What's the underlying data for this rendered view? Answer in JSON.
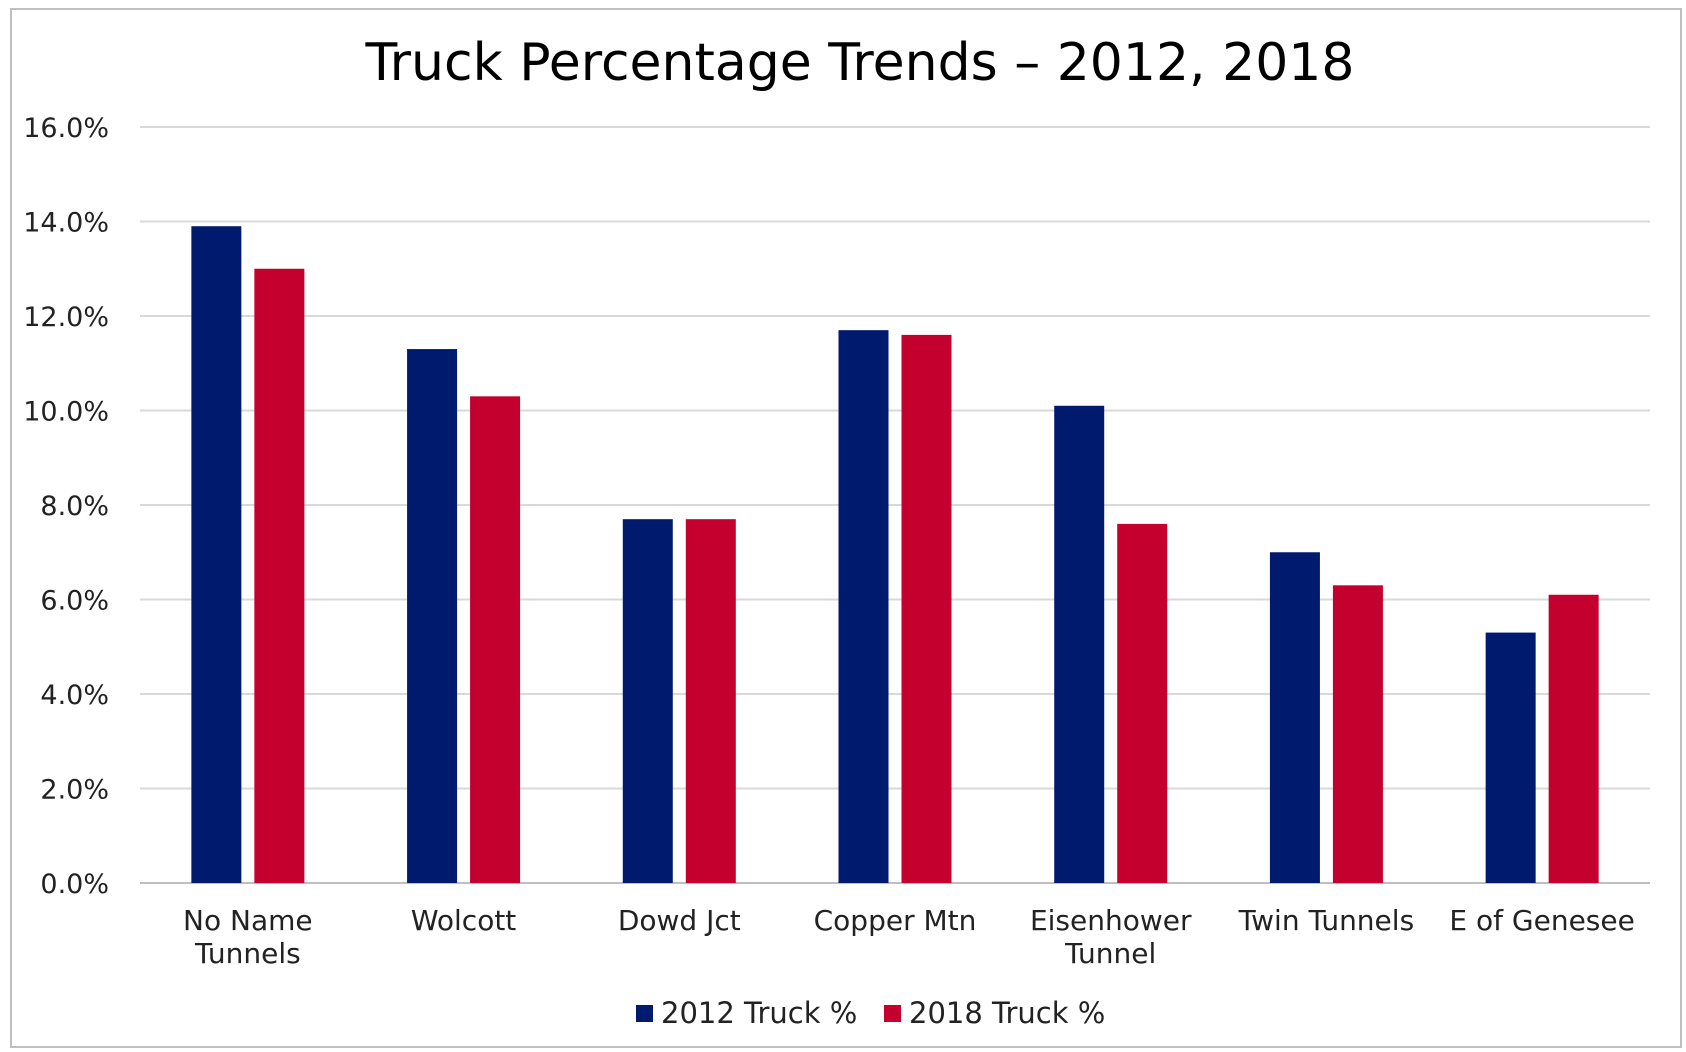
{
  "chart_data": {
    "type": "bar",
    "title": "Truck Percentage Trends – 2012, 2018",
    "xlabel": "",
    "ylabel": "",
    "ylim": [
      0,
      0.16
    ],
    "yticks": [
      "0.0%",
      "2.0%",
      "4.0%",
      "6.0%",
      "8.0%",
      "10.0%",
      "12.0%",
      "14.0%",
      "16.0%"
    ],
    "categories": [
      [
        "No Name",
        "Tunnels"
      ],
      [
        "Wolcott"
      ],
      [
        "Dowd Jct"
      ],
      [
        "Copper Mtn"
      ],
      [
        "Eisenhower",
        "Tunnel"
      ],
      [
        "Twin Tunnels"
      ],
      [
        "E of Genesee"
      ]
    ],
    "series": [
      {
        "name": "2012 Truck %",
        "color": "#001a6e",
        "values": [
          0.139,
          0.113,
          0.077,
          0.117,
          0.101,
          0.07,
          0.053
        ]
      },
      {
        "name": "2018 Truck %",
        "color": "#c4002f",
        "values": [
          0.13,
          0.103,
          0.077,
          0.116,
          0.076,
          0.063,
          0.061
        ]
      }
    ],
    "grid": true,
    "legend": "bottom"
  }
}
